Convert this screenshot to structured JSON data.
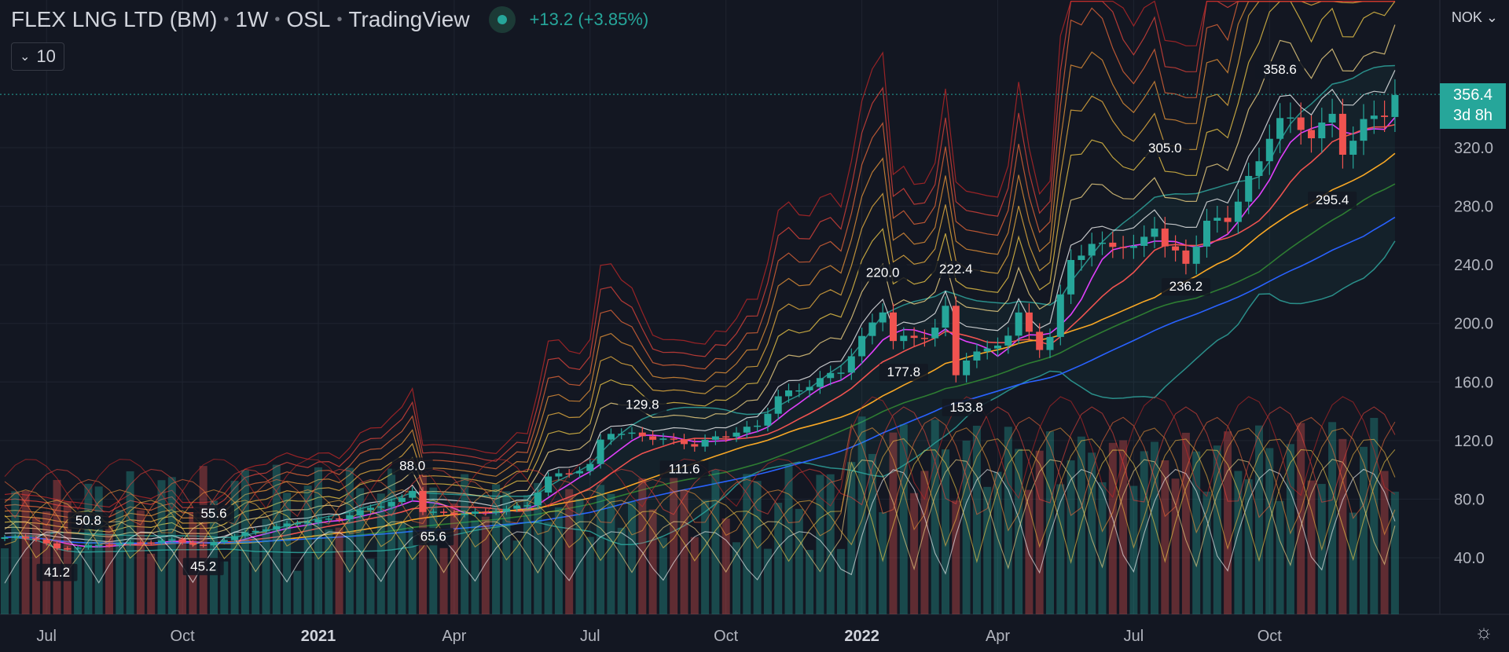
{
  "header": {
    "symbol": "FLEX LNG LTD (BM)",
    "interval": "1W",
    "exchange": "OSL",
    "source": "TradingView",
    "change": "+13.2 (+3.85%)",
    "indicator_value": "10",
    "currency": "NOK"
  },
  "price_tag": {
    "price": "356.4",
    "countdown": "3d 8h"
  },
  "colors": {
    "background": "#131722",
    "grid": "#1f2430",
    "up": "#26a69a",
    "down": "#ef5350",
    "text": "#d1d4dc",
    "axis_text": "#b2b5be"
  },
  "chart_data": {
    "type": "candlestick",
    "y_axis": {
      "ticks": [
        40,
        80,
        120,
        160,
        200,
        240,
        280,
        320
      ],
      "tick_labels": [
        "40.0",
        "80.0",
        "120.0",
        "160.0",
        "200.0",
        "240.0",
        "280.0",
        "320.0"
      ],
      "ylim": [
        0,
        410
      ]
    },
    "x_axis": {
      "labels": [
        "Jul",
        "Oct",
        "2021",
        "Apr",
        "Jul",
        "Oct",
        "2022",
        "Apr",
        "Jul",
        "Oct"
      ],
      "bold_labels": [
        "2021",
        "2022"
      ],
      "label_week_index": [
        4,
        17,
        30,
        43,
        56,
        69,
        82,
        95,
        108,
        121
      ]
    },
    "annotations": [
      {
        "text": "41.2",
        "week": 5,
        "value": 41.2,
        "pos": "below"
      },
      {
        "text": "50.8",
        "week": 8,
        "value": 50.8,
        "pos": "above"
      },
      {
        "text": "55.6",
        "week": 20,
        "value": 55.6,
        "pos": "above"
      },
      {
        "text": "45.2",
        "week": 19,
        "value": 45.2,
        "pos": "below"
      },
      {
        "text": "88.0",
        "week": 39,
        "value": 88.0,
        "pos": "above"
      },
      {
        "text": "65.6",
        "week": 41,
        "value": 65.6,
        "pos": "below"
      },
      {
        "text": "129.8",
        "week": 61,
        "value": 129.8,
        "pos": "above"
      },
      {
        "text": "111.6",
        "week": 65,
        "value": 111.6,
        "pos": "below"
      },
      {
        "text": "220.0",
        "week": 84,
        "value": 220.0,
        "pos": "above"
      },
      {
        "text": "177.8",
        "week": 86,
        "value": 177.8,
        "pos": "below"
      },
      {
        "text": "222.4",
        "week": 91,
        "value": 222.4,
        "pos": "above"
      },
      {
        "text": "153.8",
        "week": 92,
        "value": 153.8,
        "pos": "below"
      },
      {
        "text": "305.0",
        "week": 111,
        "value": 305.0,
        "pos": "above"
      },
      {
        "text": "236.2",
        "week": 113,
        "value": 236.2,
        "pos": "below"
      },
      {
        "text": "358.6",
        "week": 122,
        "value": 358.6,
        "pos": "above"
      },
      {
        "text": "295.4",
        "week": 127,
        "value": 295.4,
        "pos": "below"
      }
    ],
    "close_anchors": [
      [
        0,
        54
      ],
      [
        3,
        53
      ],
      [
        5,
        46
      ],
      [
        8,
        48
      ],
      [
        12,
        50
      ],
      [
        16,
        52
      ],
      [
        19,
        48
      ],
      [
        22,
        55
      ],
      [
        25,
        60
      ],
      [
        28,
        64
      ],
      [
        32,
        67
      ],
      [
        35,
        74
      ],
      [
        38,
        80
      ],
      [
        39,
        86
      ],
      [
        40,
        72
      ],
      [
        42,
        70
      ],
      [
        46,
        71
      ],
      [
        50,
        76
      ],
      [
        52,
        95
      ],
      [
        55,
        100
      ],
      [
        56,
        103
      ],
      [
        57,
        120
      ],
      [
        58,
        126
      ],
      [
        60,
        124
      ],
      [
        63,
        121
      ],
      [
        66,
        117
      ],
      [
        68,
        122
      ],
      [
        72,
        130
      ],
      [
        74,
        150
      ],
      [
        76,
        155
      ],
      [
        80,
        168
      ],
      [
        83,
        200
      ],
      [
        84,
        210
      ],
      [
        85,
        188
      ],
      [
        88,
        192
      ],
      [
        89,
        196
      ],
      [
        90,
        210
      ],
      [
        91,
        166
      ],
      [
        92,
        176
      ],
      [
        94,
        182
      ],
      [
        96,
        192
      ],
      [
        97,
        205
      ],
      [
        99,
        184
      ],
      [
        100,
        190
      ],
      [
        102,
        245
      ],
      [
        104,
        252
      ],
      [
        106,
        255
      ],
      [
        108,
        250
      ],
      [
        110,
        268
      ],
      [
        111,
        252
      ],
      [
        113,
        242
      ],
      [
        115,
        268
      ],
      [
        117,
        272
      ],
      [
        120,
        310
      ],
      [
        121,
        330
      ],
      [
        122,
        340
      ],
      [
        125,
        330
      ],
      [
        127,
        340
      ],
      [
        128,
        318
      ],
      [
        130,
        336
      ],
      [
        132,
        345
      ],
      [
        133,
        356.4
      ]
    ],
    "volume_max_axis": 120
  }
}
